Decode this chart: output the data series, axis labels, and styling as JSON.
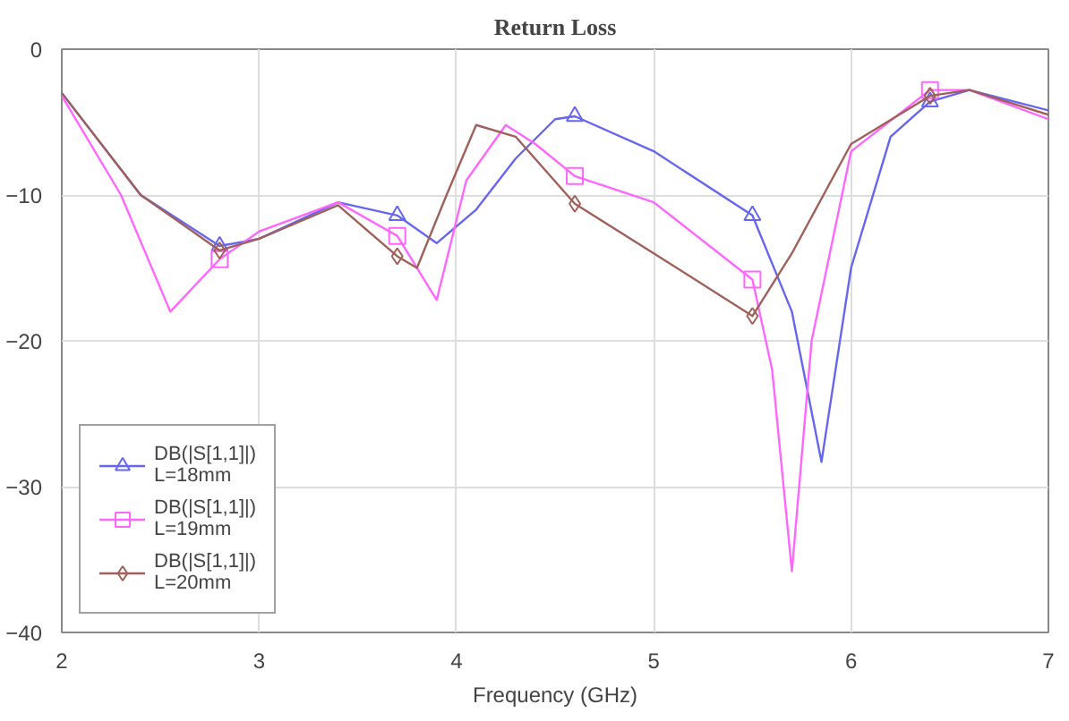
{
  "chart_data": {
    "type": "line",
    "title": "Return Loss",
    "xlabel": "Frequency (GHz)",
    "xlim": [
      2,
      7
    ],
    "xticks": [
      2,
      3,
      4,
      5,
      6,
      7
    ],
    "ylim": [
      -40,
      0
    ],
    "yticks": [
      -40,
      -30,
      -20,
      -10,
      0
    ],
    "grid": true,
    "legend": "bottom left",
    "series": [
      {
        "name": "DB(|S[1,1]|)\nL=18mm",
        "color": "#6666ee",
        "x": [
          2,
          2.4,
          2.8,
          3.0,
          3.4,
          3.7,
          3.9,
          4.1,
          4.3,
          4.5,
          4.6,
          5.0,
          5.5,
          5.7,
          5.85,
          6.0,
          6.2,
          6.4,
          6.6,
          7.0
        ],
        "values": [
          -3,
          -10,
          -13.5,
          -13,
          -10.5,
          -11.4,
          -13.3,
          -11,
          -7.5,
          -4.8,
          -4.6,
          -7,
          -11.4,
          -18,
          -28.3,
          -15,
          -6,
          -3.6,
          -2.8,
          -4.2
        ]
      },
      {
        "color": "#6666ee",
        "type": "scatter",
        "marker": "triangle",
        "x": [
          2.8,
          3.7,
          4.6,
          5.5,
          6.4
        ],
        "values": [
          -13.5,
          -11.4,
          -4.6,
          -11.4,
          -3.6
        ]
      },
      {
        "name": "DB(|S[1,1]|)\nL=19mm",
        "color": "#ff66ff",
        "x": [
          2,
          2.3,
          2.55,
          2.8,
          3.0,
          3.4,
          3.7,
          3.9,
          4.05,
          4.25,
          4.4,
          4.6,
          5.0,
          5.5,
          5.6,
          5.7,
          5.8,
          6.0,
          6.4,
          6.6,
          7.0
        ],
        "values": [
          -3.2,
          -10,
          -18,
          -14.4,
          -12.5,
          -10.5,
          -12.8,
          -17.2,
          -9,
          -5.2,
          -6.5,
          -8.7,
          -10.5,
          -15.8,
          -22,
          -35.8,
          -20,
          -7,
          -2.8,
          -2.8,
          -4.8
        ]
      },
      {
        "color": "#ff66ff",
        "type": "scatter",
        "marker": "square",
        "x": [
          2.8,
          3.7,
          4.6,
          5.5,
          6.4
        ],
        "values": [
          -14.4,
          -12.8,
          -8.7,
          -15.8,
          -2.8
        ]
      },
      {
        "name": "DB(|S[1,1]|)\nL=20mm",
        "color": "#a0605a",
        "x": [
          2,
          2.4,
          2.8,
          3.0,
          3.4,
          3.7,
          3.8,
          3.95,
          4.1,
          4.3,
          4.6,
          5.0,
          5.5,
          5.7,
          6.0,
          6.4,
          6.6,
          7.0
        ],
        "values": [
          -3,
          -10,
          -13.8,
          -13,
          -10.7,
          -14.2,
          -15,
          -10,
          -5.2,
          -6,
          -10.6,
          -14,
          -18.3,
          -14,
          -6.5,
          -3.2,
          -2.8,
          -4.5
        ]
      },
      {
        "color": "#a0605a",
        "type": "scatter",
        "marker": "diamond",
        "x": [
          2.8,
          3.7,
          4.6,
          5.5,
          6.4
        ],
        "values": [
          -13.8,
          -14.2,
          -10.6,
          -18.3,
          -3.2
        ]
      }
    ]
  }
}
